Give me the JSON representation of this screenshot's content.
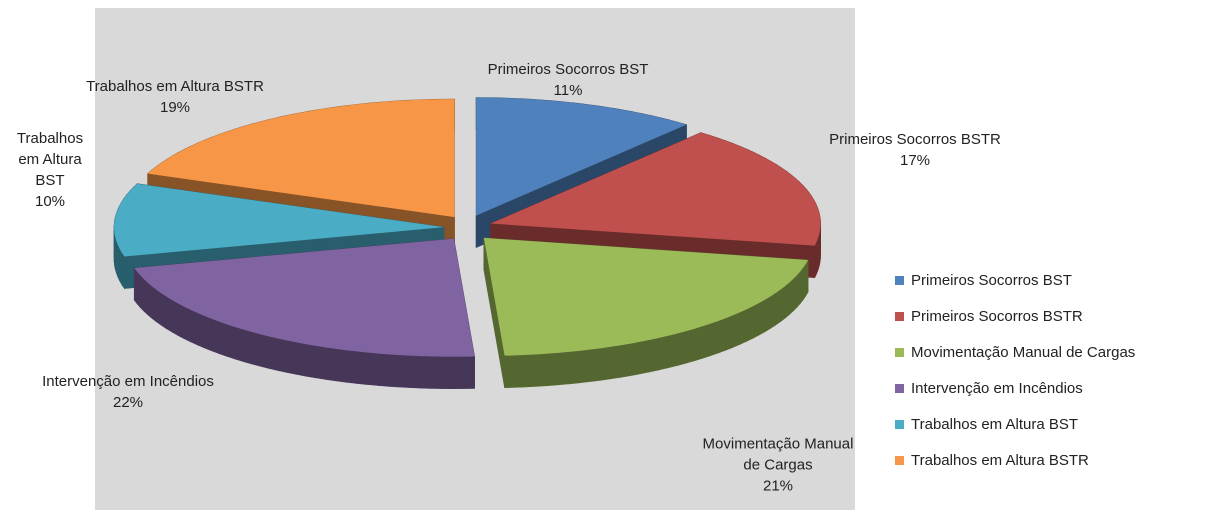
{
  "chart_data": {
    "type": "pie",
    "categories": [
      "Primeiros Socorros BST",
      "Primeiros Socorros BSTR",
      "Movimentação Manual de Cargas",
      "Intervenção em Incêndios",
      "Trabalhos em Altura BST",
      "Trabalhos em Altura BSTR"
    ],
    "values": [
      11,
      17,
      21,
      22,
      10,
      19
    ],
    "value_labels": [
      "11%",
      "17%",
      "21%",
      "22%",
      "10%",
      "19%"
    ],
    "colors": [
      "#4f81bd",
      "#c0504d",
      "#9bbb59",
      "#8064a2",
      "#4bacc6",
      "#f79646"
    ],
    "legend": "right"
  }
}
